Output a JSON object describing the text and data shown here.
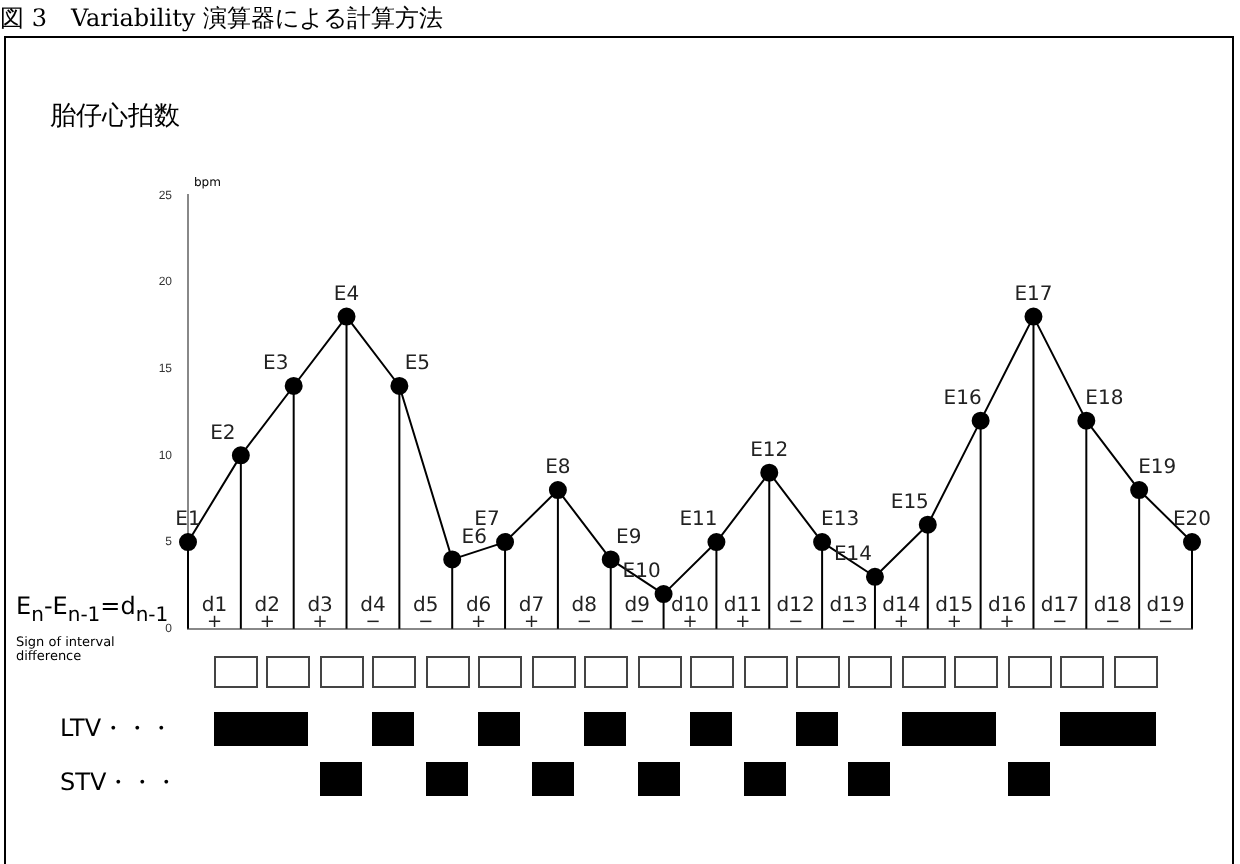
{
  "chart_data": {
    "type": "lollipop",
    "title": "図 3　Variability 演算器による計算方法",
    "ylabel": "胎仔心拍数",
    "categories": [
      null,
      null,
      null,
      null,
      null,
      null,
      null,
      null,
      null,
      null,
      null,
      null,
      null,
      null,
      null,
      null,
      null,
      null,
      null,
      null
    ],
    "series": [
      {
        "type": "line",
        "color": "#000000",
        "values": [
          5,
          10,
          14,
          18,
          14,
          4,
          5,
          8,
          4,
          2,
          5,
          9,
          5,
          3,
          6,
          12,
          18,
          12,
          8,
          5
        ]
      },
      {
        "type": "lollipop",
        "color": "#000000",
        "marker": "circle",
        "values": [
          5,
          10,
          14,
          18,
          14,
          4,
          5,
          8,
          4,
          2,
          5,
          9,
          5,
          3,
          6,
          12,
          18,
          12,
          8,
          5
        ],
        "value_labels": [
          "E1",
          "E2",
          "E3",
          "E4",
          "E5",
          "E6",
          "E7",
          "E8",
          "E9",
          "E10",
          "E11",
          "E12",
          "E13",
          "E14",
          "E15",
          "E16",
          "E17",
          "E18",
          "E19",
          "E20"
        ]
      }
    ],
    "ylim": [
      0,
      25
    ],
    "yticks": [
      0,
      5,
      10,
      15,
      20,
      25
    ],
    "tick_labels": "y",
    "line_style": "solid",
    "annotations": [
      "bpm",
      "E$_{n}$-E$_{n-1}$=d$_{n-1}$",
      "Sign of interval\ndifference",
      "LTV・・・",
      "STV・・・",
      "d1\n+",
      "d2\n+",
      "d3\n+",
      "d4\n−",
      "d5\n−",
      "d6\n+",
      "d7\n+",
      "d8\n−",
      "d9\n−",
      "d10\n+",
      "d11\n+",
      "d12\n−",
      "d13\n−",
      "d14\n+",
      "d15\n+",
      "d16\n+",
      "d17\n−",
      "d18\n−",
      "d19\n−"
    ]
  }
}
